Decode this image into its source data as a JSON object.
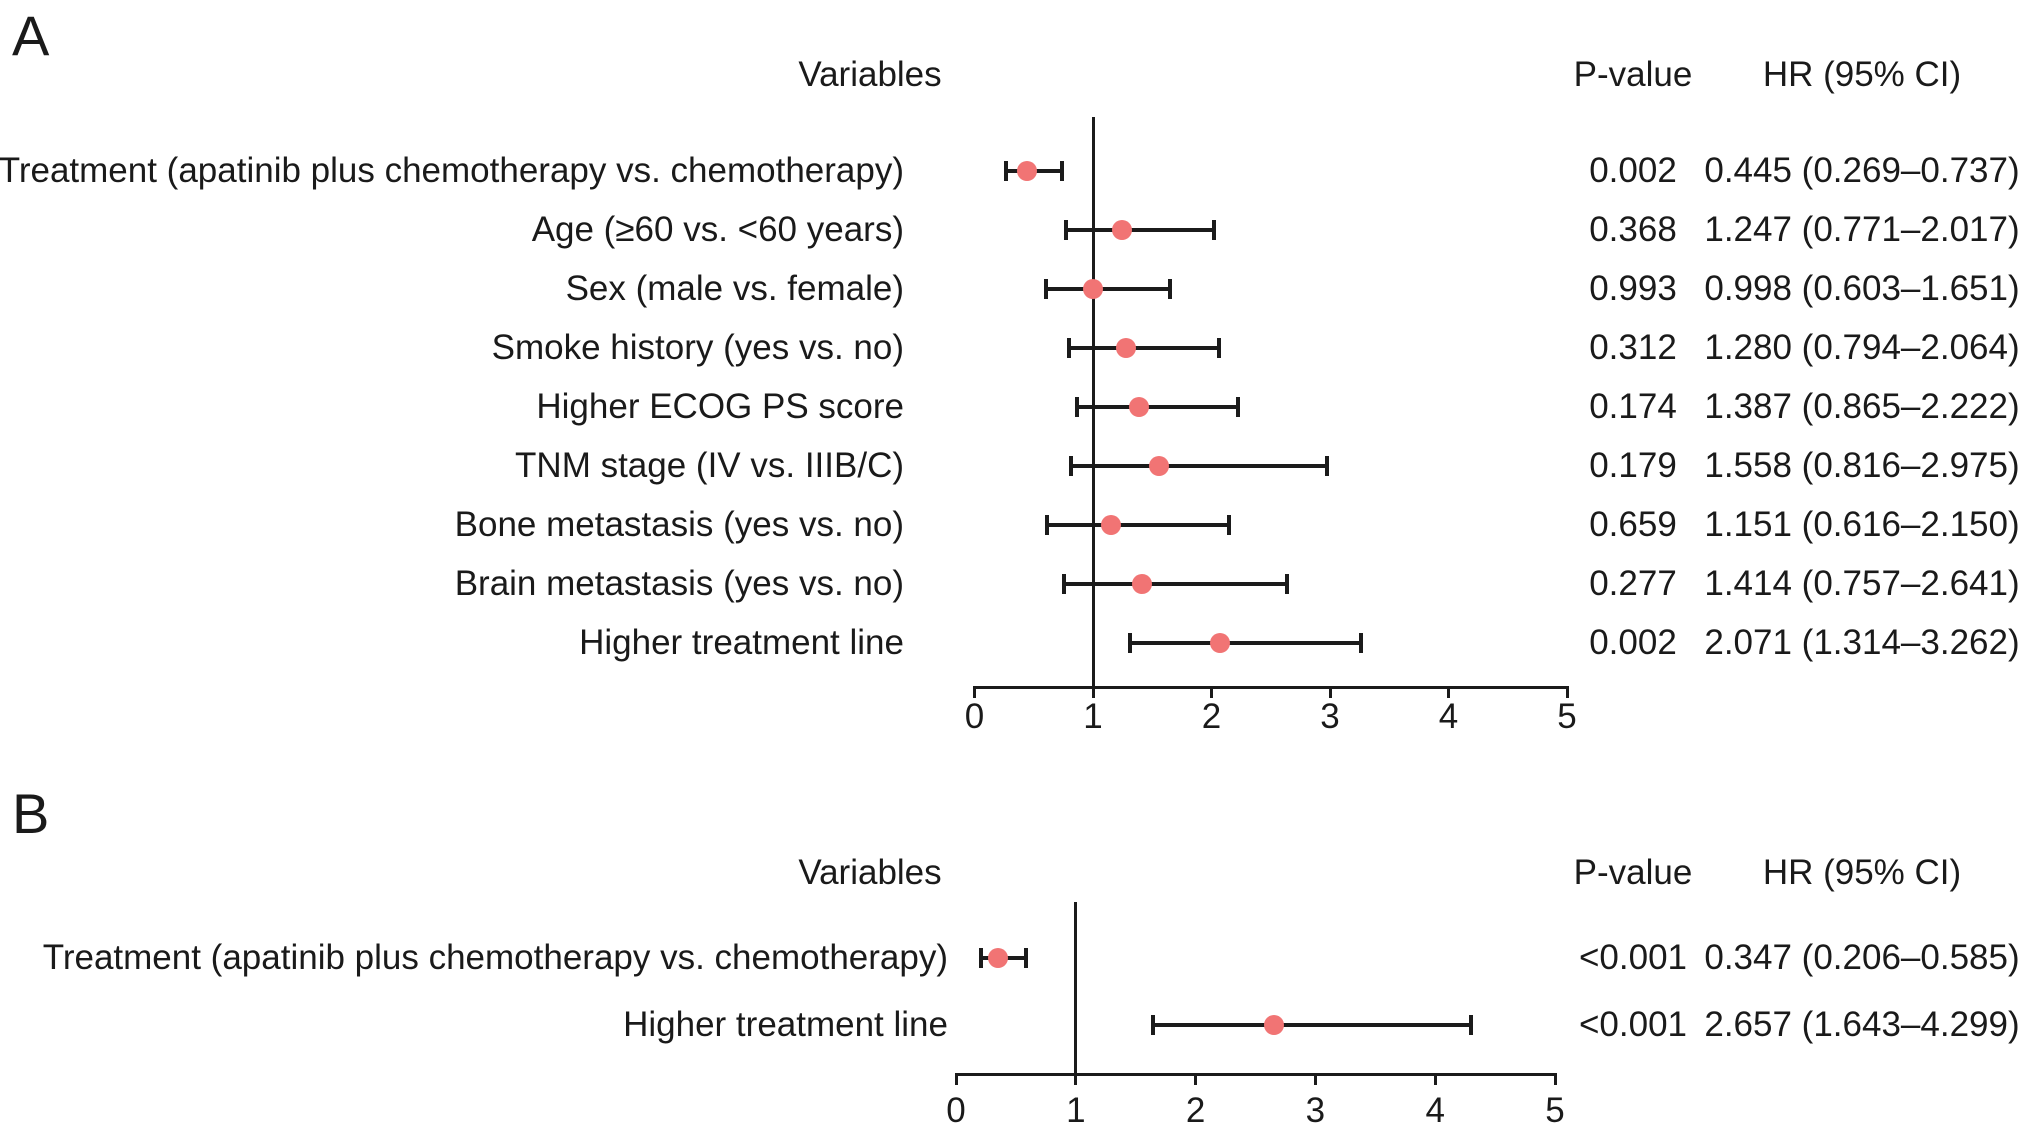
{
  "colors": {
    "point": "#f17474",
    "line": "#1b1b1b",
    "text": "#1a1a1a"
  },
  "panels": [
    {
      "label": "A",
      "headers": {
        "variables": "Variables",
        "p_value": "P-value",
        "hr_ci": "HR (95% CI)"
      },
      "axis_ticks": [
        "0",
        "1",
        "2",
        "3",
        "4",
        "5"
      ],
      "rows": [
        {
          "variable": "Treatment (apatinib plus chemotherapy vs. chemotherapy)",
          "p": "0.002",
          "hr_ci": "0.445 (0.269–0.737)",
          "hr": 0.445,
          "lo": 0.269,
          "hi": 0.737
        },
        {
          "variable": "Age (≥60 vs. <60 years)",
          "p": "0.368",
          "hr_ci": "1.247 (0.771–2.017)",
          "hr": 1.247,
          "lo": 0.771,
          "hi": 2.017
        },
        {
          "variable": "Sex (male vs. female)",
          "p": "0.993",
          "hr_ci": "0.998 (0.603–1.651)",
          "hr": 0.998,
          "lo": 0.603,
          "hi": 1.651
        },
        {
          "variable": "Smoke history (yes vs. no)",
          "p": "0.312",
          "hr_ci": "1.280 (0.794–2.064)",
          "hr": 1.28,
          "lo": 0.794,
          "hi": 2.064
        },
        {
          "variable": "Higher ECOG PS score",
          "p": "0.174",
          "hr_ci": "1.387 (0.865–2.222)",
          "hr": 1.387,
          "lo": 0.865,
          "hi": 2.222
        },
        {
          "variable": "TNM stage (IV vs. IIIB/C)",
          "p": "0.179",
          "hr_ci": "1.558 (0.816–2.975)",
          "hr": 1.558,
          "lo": 0.816,
          "hi": 2.975
        },
        {
          "variable": "Bone metastasis (yes vs. no)",
          "p": "0.659",
          "hr_ci": "1.151 (0.616–2.150)",
          "hr": 1.151,
          "lo": 0.616,
          "hi": 2.15
        },
        {
          "variable": "Brain metastasis (yes vs. no)",
          "p": "0.277",
          "hr_ci": "1.414 (0.757–2.641)",
          "hr": 1.414,
          "lo": 0.757,
          "hi": 2.641
        },
        {
          "variable": "Higher treatment line",
          "p": "0.002",
          "hr_ci": "2.071 (1.314–3.262)",
          "hr": 2.071,
          "lo": 1.314,
          "hi": 3.262
        }
      ]
    },
    {
      "label": "B",
      "headers": {
        "variables": "Variables",
        "p_value": "P-value",
        "hr_ci": "HR (95% CI)"
      },
      "axis_ticks": [
        "0",
        "1",
        "2",
        "3",
        "4",
        "5"
      ],
      "rows": [
        {
          "variable": "Treatment (apatinib plus chemotherapy vs. chemotherapy)",
          "p": "<0.001",
          "hr_ci": "0.347 (0.206–0.585)",
          "hr": 0.347,
          "lo": 0.206,
          "hi": 0.585
        },
        {
          "variable": "Higher treatment line",
          "p": "<0.001",
          "hr_ci": "2.657 (1.643–4.299)",
          "hr": 2.657,
          "lo": 1.643,
          "hi": 4.299
        }
      ]
    }
  ],
  "chart_data": [
    {
      "type": "scatter",
      "subtype": "forest-plot",
      "title": "Panel A",
      "categories": [
        "Treatment (apatinib plus chemotherapy vs. chemotherapy)",
        "Age (≥60 vs. <60 years)",
        "Sex (male vs. female)",
        "Smoke history (yes vs. no)",
        "Higher ECOG PS score",
        "TNM stage (IV vs. IIIB/C)",
        "Bone metastasis (yes vs. no)",
        "Brain metastasis (yes vs. no)",
        "Higher treatment line"
      ],
      "series": [
        {
          "name": "HR",
          "values": [
            0.445,
            1.247,
            0.998,
            1.28,
            1.387,
            1.558,
            1.151,
            1.414,
            2.071
          ]
        },
        {
          "name": "CI lower",
          "values": [
            0.269,
            0.771,
            0.603,
            0.794,
            0.865,
            0.816,
            0.616,
            0.757,
            1.314
          ]
        },
        {
          "name": "CI upper",
          "values": [
            0.737,
            2.017,
            1.651,
            2.064,
            2.222,
            2.975,
            2.15,
            2.641,
            3.262
          ]
        },
        {
          "name": "P-value",
          "values": [
            "0.002",
            "0.368",
            "0.993",
            "0.312",
            "0.174",
            "0.179",
            "0.659",
            "0.277",
            "0.002"
          ]
        }
      ],
      "xlabel": "",
      "ylabel": "",
      "xlim": [
        0,
        5
      ],
      "x_ticks": [
        0,
        1,
        2,
        3,
        4,
        5
      ],
      "reference_line_x": 1,
      "grid": false,
      "legend": false
    },
    {
      "type": "scatter",
      "subtype": "forest-plot",
      "title": "Panel B",
      "categories": [
        "Treatment (apatinib plus chemotherapy vs. chemotherapy)",
        "Higher treatment line"
      ],
      "series": [
        {
          "name": "HR",
          "values": [
            0.347,
            2.657
          ]
        },
        {
          "name": "CI lower",
          "values": [
            0.206,
            1.643
          ]
        },
        {
          "name": "CI upper",
          "values": [
            0.585,
            4.299
          ]
        },
        {
          "name": "P-value",
          "values": [
            "<0.001",
            "<0.001"
          ]
        }
      ],
      "xlabel": "",
      "ylabel": "",
      "xlim": [
        0,
        5
      ],
      "x_ticks": [
        0,
        1,
        2,
        3,
        4,
        5
      ],
      "reference_line_x": 1,
      "grid": false,
      "legend": false
    }
  ]
}
